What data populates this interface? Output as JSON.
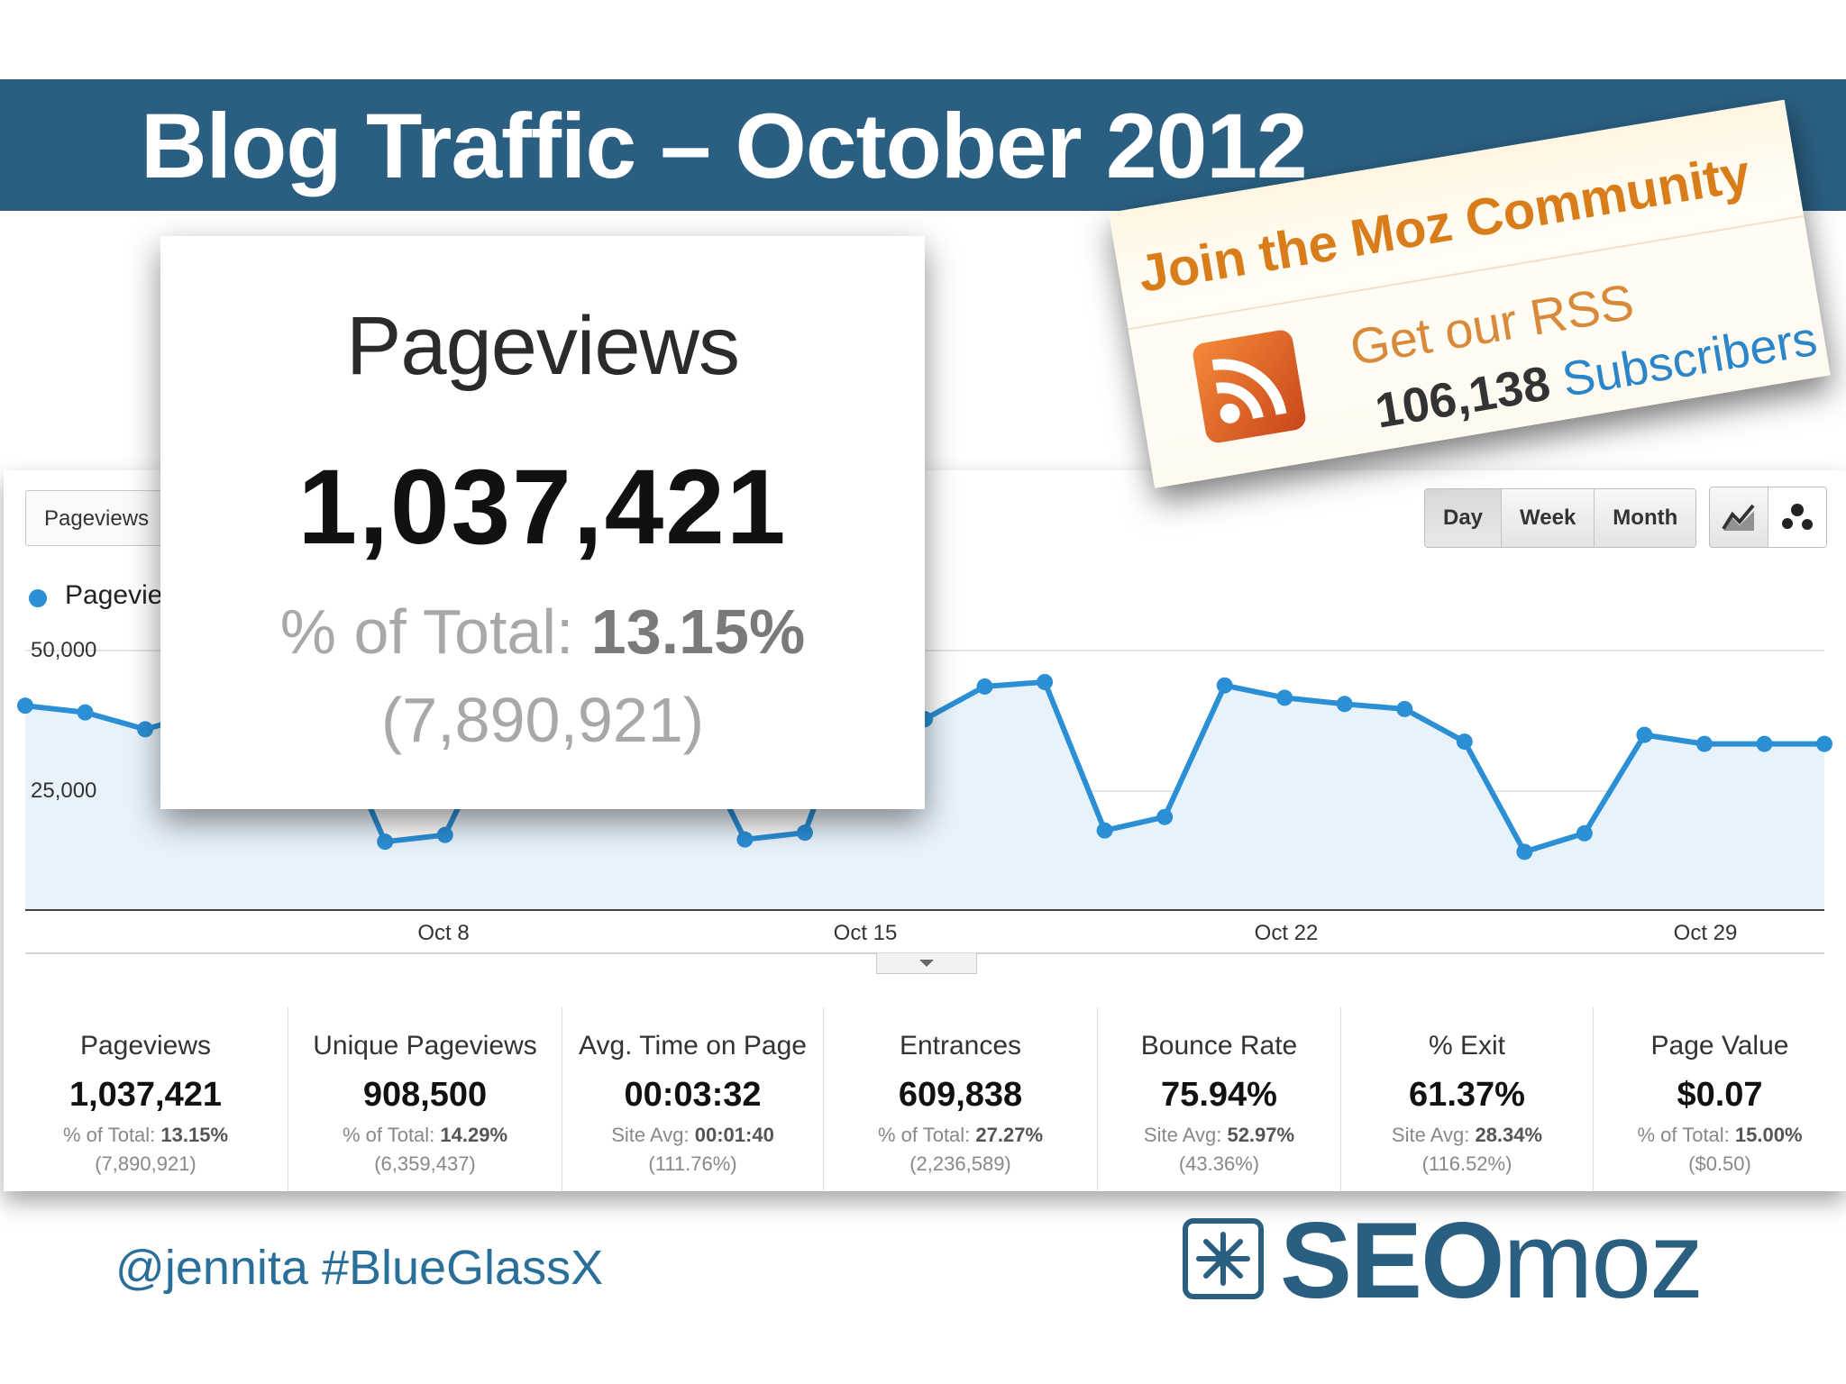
{
  "slide": {
    "title": "Blog Traffic – October 2012",
    "handle": "@jennita  #BlueGlassX"
  },
  "logo": {
    "part1": "SEO",
    "part2": "moz",
    "icon": "snowflake-gear-icon"
  },
  "analytics": {
    "metric_selector": "Pageviews",
    "legend_label": "Pageviews",
    "series_color": "#2b8fd6",
    "buttons": [
      "Day",
      "Week",
      "Month"
    ],
    "active_button": "Day",
    "view_icons": [
      "line-chart-icon",
      "motion-chart-icon"
    ]
  },
  "chart_data": {
    "type": "area",
    "title": "",
    "xlabel": "",
    "ylabel": "",
    "x_ticks": [
      "Oct 8",
      "Oct 15",
      "Oct 22",
      "Oct 29"
    ],
    "y_ticks": [
      "50,000",
      "25,000"
    ],
    "ylim": [
      0,
      50000
    ],
    "grid": true,
    "series": [
      {
        "name": "Pageviews",
        "x": [
          "Oct 1",
          "Oct 2",
          "Oct 3",
          "Oct 4",
          "Oct 5",
          "Oct 6",
          "Oct 7",
          "Oct 8",
          "Oct 9",
          "Oct 10",
          "Oct 11",
          "Oct 12",
          "Oct 13",
          "Oct 14",
          "Oct 15",
          "Oct 16",
          "Oct 17",
          "Oct 18",
          "Oct 19",
          "Oct 20",
          "Oct 21",
          "Oct 22",
          "Oct 23",
          "Oct 24",
          "Oct 25",
          "Oct 26",
          "Oct 27",
          "Oct 28",
          "Oct 29",
          "Oct 30",
          "Oct 31"
        ],
        "values": [
          40200,
          39000,
          36000,
          39000,
          41000,
          40500,
          16000,
          17200,
          39500,
          41500,
          40500,
          38000,
          16400,
          17600,
          46600,
          37800,
          43600,
          44400,
          18000,
          20400,
          43800,
          41600,
          40500,
          39600,
          33800,
          14200,
          17500,
          35000,
          33400,
          33400,
          33400
        ]
      }
    ]
  },
  "zoom": {
    "label": "Pageviews",
    "value": "1,037,421",
    "pct_prefix": "% of Total: ",
    "pct_value": "13.15%",
    "total": "(7,890,921)"
  },
  "stats": [
    {
      "label": "Pageviews",
      "value": "1,037,421",
      "sub_label": "% of Total: ",
      "sub_value": "13.15%",
      "sub2": "(7,890,921)"
    },
    {
      "label": "Unique Pageviews",
      "value": "908,500",
      "sub_label": "% of Total: ",
      "sub_value": "14.29%",
      "sub2": "(6,359,437)"
    },
    {
      "label": "Avg. Time on Page",
      "value": "00:03:32",
      "sub_label": "Site Avg: ",
      "sub_value": "00:01:40",
      "sub2": "(111.76%)"
    },
    {
      "label": "Entrances",
      "value": "609,838",
      "sub_label": "% of Total: ",
      "sub_value": "27.27%",
      "sub2": "(2,236,589)"
    },
    {
      "label": "Bounce Rate",
      "value": "75.94%",
      "sub_label": "Site Avg: ",
      "sub_value": "52.97%",
      "sub2": "(43.36%)"
    },
    {
      "label": "% Exit",
      "value": "61.37%",
      "sub_label": "Site Avg: ",
      "sub_value": "28.34%",
      "sub2": "(116.52%)"
    },
    {
      "label": "Page Value",
      "value": "$0.07",
      "sub_label": "% of Total: ",
      "sub_value": "15.00%",
      "sub2": "($0.50)"
    }
  ],
  "moz_card": {
    "title": "Join the Moz Community",
    "rss_text": "Get our RSS",
    "subscribers_count": "106,138",
    "subscribers_word": "Subscribers",
    "title_color": "#d87d1a",
    "link_color": "#2a86c9"
  }
}
